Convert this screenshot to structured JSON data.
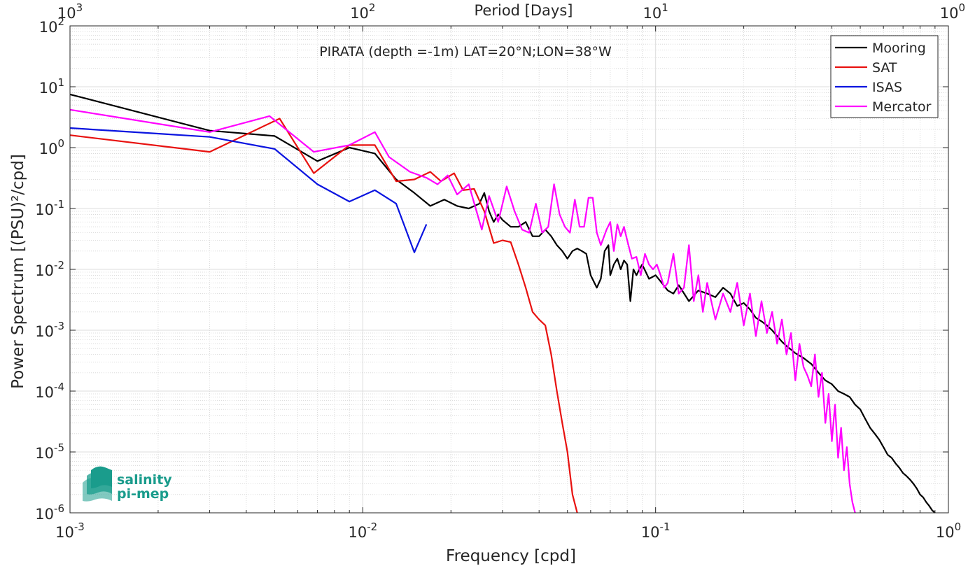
{
  "chart_data": {
    "type": "line",
    "title": "PIRATA (depth =-1m) LAT=20°N;LON=38°W",
    "xlabel": "Frequency [cpd]",
    "ylabel": "Power Spectrum [(PSU)²/cpd]",
    "top_xlabel": "Period [Days]",
    "x_scale": "log",
    "y_scale": "log",
    "xlim": [
      0.001,
      1
    ],
    "ylim": [
      1e-06,
      100
    ],
    "grid": true,
    "legend_position": "top-right",
    "x_ticks": [
      {
        "value": 0.001,
        "base": "10",
        "exp": "-3"
      },
      {
        "value": 0.01,
        "base": "10",
        "exp": "-2"
      },
      {
        "value": 0.1,
        "base": "10",
        "exp": "-1"
      },
      {
        "value": 1,
        "base": "10",
        "exp": "0"
      }
    ],
    "top_ticks": [
      {
        "value": 0.001,
        "base": "10",
        "exp": "3"
      },
      {
        "value": 0.01,
        "base": "10",
        "exp": "2"
      },
      {
        "value": 0.1,
        "base": "10",
        "exp": "1"
      },
      {
        "value": 1,
        "base": "10",
        "exp": "0"
      }
    ],
    "y_ticks": [
      {
        "value": 1e-06,
        "base": "10",
        "exp": "-6"
      },
      {
        "value": 1e-05,
        "base": "10",
        "exp": "-5"
      },
      {
        "value": 0.0001,
        "base": "10",
        "exp": "-4"
      },
      {
        "value": 0.001,
        "base": "10",
        "exp": "-3"
      },
      {
        "value": 0.01,
        "base": "10",
        "exp": "-2"
      },
      {
        "value": 0.1,
        "base": "10",
        "exp": "-1"
      },
      {
        "value": 1,
        "base": "10",
        "exp": "0"
      },
      {
        "value": 10,
        "base": "10",
        "exp": "1"
      },
      {
        "value": 100,
        "base": "10",
        "exp": "2"
      }
    ],
    "series": [
      {
        "name": "Mooring",
        "color": "#000000",
        "x": [
          0.001,
          0.003,
          0.005,
          0.007,
          0.009,
          0.011,
          0.013,
          0.015,
          0.017,
          0.019,
          0.021,
          0.023,
          0.025,
          0.026,
          0.027,
          0.028,
          0.029,
          0.03,
          0.032,
          0.034,
          0.036,
          0.038,
          0.04,
          0.042,
          0.044,
          0.046,
          0.048,
          0.05,
          0.052,
          0.054,
          0.056,
          0.058,
          0.06,
          0.063,
          0.065,
          0.067,
          0.069,
          0.07,
          0.072,
          0.074,
          0.076,
          0.078,
          0.08,
          0.082,
          0.084,
          0.086,
          0.088,
          0.09,
          0.095,
          0.1,
          0.105,
          0.11,
          0.115,
          0.12,
          0.13,
          0.14,
          0.15,
          0.16,
          0.17,
          0.18,
          0.19,
          0.2,
          0.21,
          0.22,
          0.23,
          0.24,
          0.25,
          0.26,
          0.27,
          0.28,
          0.29,
          0.3,
          0.32,
          0.34,
          0.36,
          0.38,
          0.4,
          0.42,
          0.44,
          0.46,
          0.48,
          0.5,
          0.52,
          0.54,
          0.56,
          0.58,
          0.6,
          0.62,
          0.64,
          0.66,
          0.68,
          0.7,
          0.72,
          0.74,
          0.76,
          0.78,
          0.8,
          0.82,
          0.84,
          0.86,
          0.88,
          0.9
        ],
        "y": [
          7.5,
          1.9,
          1.55,
          0.6,
          1.0,
          0.8,
          0.3,
          0.18,
          0.11,
          0.14,
          0.11,
          0.1,
          0.12,
          0.18,
          0.09,
          0.06,
          0.08,
          0.065,
          0.05,
          0.05,
          0.06,
          0.035,
          0.035,
          0.045,
          0.035,
          0.025,
          0.02,
          0.015,
          0.02,
          0.022,
          0.02,
          0.018,
          0.008,
          0.005,
          0.007,
          0.02,
          0.025,
          0.008,
          0.012,
          0.015,
          0.01,
          0.014,
          0.012,
          0.003,
          0.01,
          0.008,
          0.01,
          0.012,
          0.007,
          0.008,
          0.006,
          0.0045,
          0.004,
          0.0055,
          0.003,
          0.0045,
          0.004,
          0.0035,
          0.005,
          0.004,
          0.0025,
          0.0028,
          0.0022,
          0.0016,
          0.0014,
          0.0012,
          0.001,
          0.0008,
          0.00065,
          0.00055,
          0.00048,
          0.00042,
          0.00035,
          0.00028,
          0.0002,
          0.00015,
          0.00013,
          0.0001,
          9e-05,
          8e-05,
          6e-05,
          5e-05,
          3.5e-05,
          2.5e-05,
          2e-05,
          1.6e-05,
          1.2e-05,
          9e-06,
          8e-06,
          6.5e-06,
          5.5e-06,
          4.5e-06,
          4e-06,
          3.5e-06,
          3e-06,
          2.5e-06,
          2e-06,
          1.8e-06,
          1.5e-06,
          1.3e-06,
          1.1e-06,
          1e-06
        ]
      },
      {
        "name": "SAT",
        "color": "#e8110f",
        "x": [
          0.001,
          0.003,
          0.0052,
          0.0068,
          0.009,
          0.011,
          0.013,
          0.015,
          0.017,
          0.0185,
          0.0205,
          0.022,
          0.024,
          0.026,
          0.028,
          0.03,
          0.032,
          0.034,
          0.036,
          0.038,
          0.04,
          0.042,
          0.044,
          0.046,
          0.048,
          0.05,
          0.052,
          0.054
        ],
        "y": [
          1.6,
          0.85,
          3.0,
          0.38,
          1.1,
          1.1,
          0.28,
          0.3,
          0.4,
          0.28,
          0.38,
          0.2,
          0.21,
          0.09,
          0.027,
          0.03,
          0.028,
          0.012,
          0.005,
          0.002,
          0.0015,
          0.0012,
          0.0004,
          0.0001,
          3e-05,
          1e-05,
          2e-06,
          1e-06
        ]
      },
      {
        "name": "ISAS",
        "color": "#0a14e0",
        "x": [
          0.001,
          0.003,
          0.005,
          0.007,
          0.009,
          0.011,
          0.013,
          0.015,
          0.0165
        ],
        "y": [
          2.1,
          1.5,
          0.95,
          0.25,
          0.13,
          0.2,
          0.12,
          0.019,
          0.055
        ]
      },
      {
        "name": "Mercator",
        "color": "#ff00ff",
        "x": [
          0.001,
          0.003,
          0.0048,
          0.0068,
          0.009,
          0.011,
          0.0123,
          0.0145,
          0.0165,
          0.018,
          0.0195,
          0.021,
          0.023,
          0.0255,
          0.027,
          0.029,
          0.031,
          0.033,
          0.035,
          0.037,
          0.039,
          0.041,
          0.043,
          0.045,
          0.047,
          0.049,
          0.051,
          0.053,
          0.055,
          0.057,
          0.059,
          0.061,
          0.063,
          0.065,
          0.068,
          0.07,
          0.072,
          0.074,
          0.076,
          0.078,
          0.08,
          0.083,
          0.086,
          0.089,
          0.092,
          0.095,
          0.098,
          0.101,
          0.104,
          0.107,
          0.11,
          0.115,
          0.12,
          0.125,
          0.13,
          0.135,
          0.14,
          0.145,
          0.15,
          0.16,
          0.17,
          0.18,
          0.19,
          0.2,
          0.21,
          0.22,
          0.23,
          0.24,
          0.25,
          0.26,
          0.27,
          0.28,
          0.29,
          0.3,
          0.31,
          0.32,
          0.33,
          0.34,
          0.35,
          0.36,
          0.37,
          0.38,
          0.39,
          0.4,
          0.41,
          0.42,
          0.43,
          0.44,
          0.45,
          0.46,
          0.47,
          0.48
        ],
        "y": [
          4.2,
          1.8,
          3.3,
          0.85,
          1.1,
          1.8,
          0.7,
          0.4,
          0.32,
          0.25,
          0.35,
          0.17,
          0.25,
          0.045,
          0.16,
          0.06,
          0.23,
          0.09,
          0.045,
          0.04,
          0.12,
          0.04,
          0.05,
          0.25,
          0.08,
          0.05,
          0.04,
          0.14,
          0.05,
          0.05,
          0.15,
          0.15,
          0.04,
          0.025,
          0.045,
          0.06,
          0.02,
          0.055,
          0.035,
          0.05,
          0.03,
          0.015,
          0.016,
          0.008,
          0.018,
          0.012,
          0.01,
          0.012,
          0.008,
          0.005,
          0.006,
          0.018,
          0.004,
          0.005,
          0.025,
          0.003,
          0.008,
          0.002,
          0.006,
          0.0015,
          0.004,
          0.002,
          0.006,
          0.0012,
          0.004,
          0.0008,
          0.003,
          0.0009,
          0.002,
          0.0006,
          0.0015,
          0.0004,
          0.0009,
          0.00015,
          0.0006,
          0.00025,
          0.00018,
          0.00012,
          0.0004,
          8e-05,
          0.0002,
          3e-05,
          9e-05,
          1.5e-05,
          6e-05,
          8e-06,
          2.5e-05,
          5e-06,
          1.2e-05,
          3e-06,
          1.5e-06,
          1e-06
        ]
      }
    ]
  },
  "watermark": {
    "line1": "salinity",
    "line2": "pi-mep",
    "color": "#1a9c8c"
  }
}
